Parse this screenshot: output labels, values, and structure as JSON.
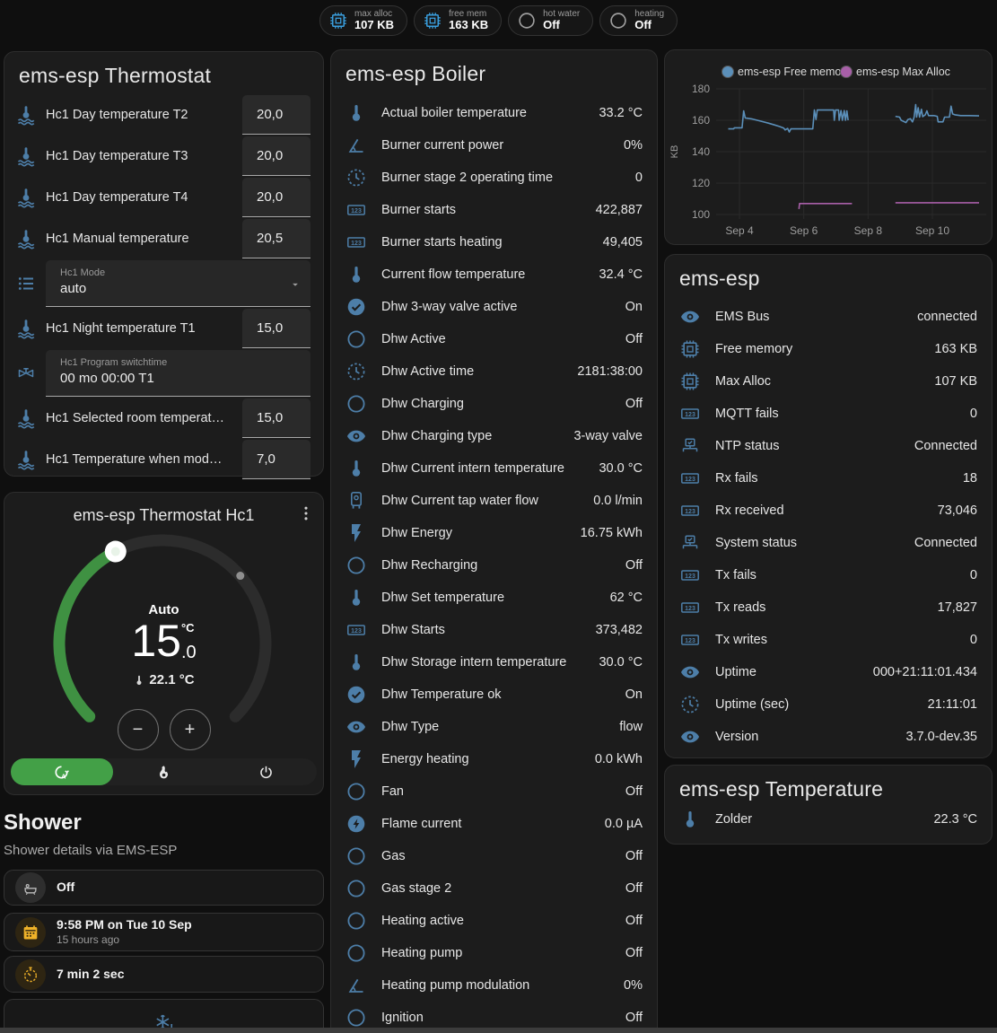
{
  "colors": {
    "background": "#0f0f0f",
    "card": "#1c1c1c",
    "icon_blue": "#4d7ea8",
    "badge_blue": "#3aa0e0",
    "amber": "#efb229",
    "green_active": "#43a047",
    "line_blue": "#5b8fb9",
    "line_purple": "#a85fa8"
  },
  "badges": [
    {
      "label": "max alloc",
      "value": "107 KB",
      "icon": "chip",
      "icon_color": "#3aa0e0"
    },
    {
      "label": "free mem",
      "value": "163 KB",
      "icon": "chip",
      "icon_color": "#3aa0e0"
    },
    {
      "label": "hot water",
      "value": "Off",
      "icon": "circle",
      "icon_color": "#9e9e9e"
    },
    {
      "label": "heating",
      "value": "Off",
      "icon": "circle",
      "icon_color": "#9e9e9e"
    }
  ],
  "thermostat_card": {
    "title": "ems-esp Thermostat",
    "rows": [
      {
        "type": "number",
        "icon": "thermometer-water",
        "label": "Hc1 Day temperature T2",
        "value": "20,0"
      },
      {
        "type": "number",
        "icon": "thermometer-water",
        "label": "Hc1 Day temperature T3",
        "value": "20,0"
      },
      {
        "type": "number",
        "icon": "thermometer-water",
        "label": "Hc1 Day temperature T4",
        "value": "20,0"
      },
      {
        "type": "number",
        "icon": "thermometer-water",
        "label": "Hc1 Manual temperature",
        "value": "20,5"
      },
      {
        "type": "select",
        "icon": "list",
        "label": "Hc1 Mode",
        "value": "auto"
      },
      {
        "type": "number",
        "icon": "thermometer-water",
        "label": "Hc1 Night temperature T1",
        "value": "15,0"
      },
      {
        "type": "text",
        "icon": "pipe-valve",
        "label": "Hc1 Program switchtime",
        "value": "00 mo 00:00 T1"
      },
      {
        "type": "number",
        "icon": "thermometer-water",
        "label": "Hc1 Selected room temperat…",
        "value": "15,0"
      },
      {
        "type": "number",
        "icon": "thermometer-water",
        "label": "Hc1 Temperature when mod…",
        "value": "7,0"
      }
    ]
  },
  "dial_card": {
    "title": "ems-esp Thermostat Hc1",
    "mode": "Auto",
    "target_int": "15",
    "target_dec": ".0",
    "target_unit": "°C",
    "current_temp": "22.1 °C",
    "decrease_label": "−",
    "increase_label": "+",
    "modes": [
      {
        "name": "auto",
        "icon": "auto-mode",
        "active": true
      },
      {
        "name": "heat",
        "icon": "flame",
        "active": false
      },
      {
        "name": "off",
        "icon": "power",
        "active": false
      }
    ]
  },
  "shower": {
    "title": "Shower",
    "subtitle": "Shower details via EMS-ESP",
    "chips": [
      {
        "icon": "bathtub",
        "icon_style": "gray",
        "value": "Off",
        "sub": ""
      },
      {
        "icon": "calendar",
        "icon_style": "amber",
        "value": "9:58 PM on Tue 10 Sep",
        "sub": "15 hours ago"
      },
      {
        "icon": "timer",
        "icon_style": "amber",
        "value": "7 min 2 sec",
        "sub": ""
      },
      {
        "icon": "snowflake-alert",
        "icon_style": "center",
        "value": "",
        "sub": ""
      }
    ]
  },
  "boiler_card": {
    "title": "ems-esp Boiler",
    "rows": [
      {
        "icon": "thermometer",
        "label": "Actual boiler temperature",
        "value": "33.2 °C"
      },
      {
        "icon": "angle",
        "label": "Burner current power",
        "value": "0%"
      },
      {
        "icon": "clock",
        "label": "Burner stage 2 operating time",
        "value": "0"
      },
      {
        "icon": "counter",
        "label": "Burner starts",
        "value": "422,887"
      },
      {
        "icon": "counter",
        "label": "Burner starts heating",
        "value": "49,405"
      },
      {
        "icon": "thermometer",
        "label": "Current flow temperature",
        "value": "32.4 °C"
      },
      {
        "icon": "check-circle",
        "label": "Dhw 3-way valve active",
        "value": "On"
      },
      {
        "icon": "circle",
        "label": "Dhw Active",
        "value": "Off"
      },
      {
        "icon": "clock",
        "label": "Dhw Active time",
        "value": "2181:38:00"
      },
      {
        "icon": "circle",
        "label": "Dhw Charging",
        "value": "Off"
      },
      {
        "icon": "eye",
        "label": "Dhw Charging type",
        "value": "3-way valve"
      },
      {
        "icon": "thermometer",
        "label": "Dhw Current intern temperature",
        "value": "30.0 °C"
      },
      {
        "icon": "water-boiler",
        "label": "Dhw Current tap water flow",
        "value": "0.0 l/min"
      },
      {
        "icon": "lightning",
        "label": "Dhw Energy",
        "value": "16.75 kWh"
      },
      {
        "icon": "circle",
        "label": "Dhw Recharging",
        "value": "Off"
      },
      {
        "icon": "thermometer",
        "label": "Dhw Set temperature",
        "value": "62 °C"
      },
      {
        "icon": "counter",
        "label": "Dhw Starts",
        "value": "373,482"
      },
      {
        "icon": "thermometer",
        "label": "Dhw Storage intern temperature",
        "value": "30.0 °C"
      },
      {
        "icon": "check-circle",
        "label": "Dhw Temperature ok",
        "value": "On"
      },
      {
        "icon": "eye",
        "label": "Dhw Type",
        "value": "flow"
      },
      {
        "icon": "lightning",
        "label": "Energy heating",
        "value": "0.0 kWh"
      },
      {
        "icon": "circle",
        "label": "Fan",
        "value": "Off"
      },
      {
        "icon": "flash-circle",
        "label": "Flame current",
        "value": "0.0 µA"
      },
      {
        "icon": "circle",
        "label": "Gas",
        "value": "Off"
      },
      {
        "icon": "circle",
        "label": "Gas stage 2",
        "value": "Off"
      },
      {
        "icon": "circle",
        "label": "Heating active",
        "value": "Off"
      },
      {
        "icon": "circle",
        "label": "Heating pump",
        "value": "Off"
      },
      {
        "icon": "angle",
        "label": "Heating pump modulation",
        "value": "0%"
      },
      {
        "icon": "circle",
        "label": "Ignition",
        "value": "Off"
      }
    ]
  },
  "chart_data": {
    "type": "line",
    "title": "",
    "ylabel": "KB",
    "yticks": [
      100,
      120,
      140,
      160,
      180
    ],
    "ylim": [
      100,
      180
    ],
    "xticks": [
      {
        "d": 4,
        "label": "Sep 4"
      },
      {
        "d": 6,
        "label": "Sep 6"
      },
      {
        "d": 8,
        "label": "Sep 8"
      },
      {
        "d": 10,
        "label": "Sep 10"
      }
    ],
    "legend_position": "top",
    "grid": true,
    "series": [
      {
        "name": "ems-esp Free memory",
        "color": "#5b8fb9",
        "segments": [
          [
            [
              3.65,
              154.5
            ],
            [
              3.82,
              154.5
            ],
            [
              3.84,
              155.2
            ],
            [
              4.08,
              155.2
            ],
            [
              4.13,
              166
            ],
            [
              4.18,
              161.5
            ],
            [
              4.4,
              160.8
            ],
            [
              4.65,
              159.5
            ],
            [
              4.9,
              158.2
            ],
            [
              5.1,
              157
            ],
            [
              5.25,
              156
            ],
            [
              5.38,
              155
            ],
            [
              5.42,
              153.8
            ],
            [
              5.5,
              154.8
            ],
            [
              5.55,
              152.5
            ],
            [
              5.6,
              154.5
            ],
            [
              6.28,
              154.5
            ],
            [
              6.33,
              166.5
            ],
            [
              6.38,
              160.5
            ],
            [
              6.42,
              166.5
            ],
            [
              6.93,
              166.5
            ],
            [
              6.95,
              160
            ],
            [
              6.99,
              166.5
            ],
            [
              7.08,
              166.5
            ],
            [
              7.1,
              160
            ],
            [
              7.16,
              166.2
            ],
            [
              7.2,
              160
            ],
            [
              7.26,
              166.2
            ],
            [
              7.3,
              160
            ],
            [
              7.34,
              166
            ],
            [
              7.38,
              160
            ]
          ],
          [
            [
              8.85,
              162.5
            ],
            [
              8.98,
              162
            ],
            [
              9.03,
              160
            ],
            [
              9.1,
              159.3
            ],
            [
              9.18,
              158.5
            ],
            [
              9.24,
              160.5
            ],
            [
              9.32,
              161
            ],
            [
              9.38,
              159
            ],
            [
              9.43,
              161.8
            ],
            [
              9.48,
              170
            ],
            [
              9.51,
              162
            ],
            [
              9.56,
              168
            ],
            [
              9.6,
              162
            ],
            [
              9.66,
              167
            ],
            [
              9.7,
              162.3
            ],
            [
              9.78,
              163.5
            ],
            [
              9.83,
              166
            ],
            [
              9.88,
              163
            ],
            [
              10.05,
              163
            ],
            [
              10.15,
              162.5
            ],
            [
              10.18,
              159
            ],
            [
              10.33,
              159
            ],
            [
              10.38,
              162
            ],
            [
              10.53,
              162
            ],
            [
              10.58,
              169
            ],
            [
              10.63,
              164
            ],
            [
              10.7,
              163.5
            ],
            [
              10.88,
              163
            ],
            [
              11.15,
              163
            ],
            [
              11.45,
              162.8
            ]
          ]
        ]
      },
      {
        "name": "ems-esp Max Alloc",
        "color": "#a85fa8",
        "segments": [
          [
            [
              5.85,
              103.5
            ],
            [
              5.87,
              107
            ],
            [
              7.5,
              107
            ]
          ],
          [
            [
              8.85,
              107.5
            ],
            [
              11.45,
              107.5
            ]
          ]
        ]
      }
    ]
  },
  "emsesp_card": {
    "title": "ems-esp",
    "rows": [
      {
        "icon": "eye",
        "label": "EMS Bus",
        "value": "connected"
      },
      {
        "icon": "chip",
        "label": "Free memory",
        "value": "163 KB"
      },
      {
        "icon": "chip",
        "label": "Max Alloc",
        "value": "107 KB"
      },
      {
        "icon": "counter",
        "label": "MQTT fails",
        "value": "0"
      },
      {
        "icon": "network",
        "label": "NTP status",
        "value": "Connected"
      },
      {
        "icon": "counter",
        "label": "Rx fails",
        "value": "18"
      },
      {
        "icon": "counter",
        "label": "Rx received",
        "value": "73,046"
      },
      {
        "icon": "network",
        "label": "System status",
        "value": "Connected"
      },
      {
        "icon": "counter",
        "label": "Tx fails",
        "value": "0"
      },
      {
        "icon": "counter",
        "label": "Tx reads",
        "value": "17,827"
      },
      {
        "icon": "counter",
        "label": "Tx writes",
        "value": "0"
      },
      {
        "icon": "eye",
        "label": "Uptime",
        "value": "000+21:11:01.434"
      },
      {
        "icon": "clock",
        "label": "Uptime (sec)",
        "value": "21:11:01"
      },
      {
        "icon": "eye",
        "label": "Version",
        "value": "3.7.0-dev.35"
      }
    ]
  },
  "temperature_card": {
    "title": "ems-esp Temperature",
    "rows": [
      {
        "icon": "thermometer",
        "label": "Zolder",
        "value": "22.3 °C"
      }
    ]
  }
}
